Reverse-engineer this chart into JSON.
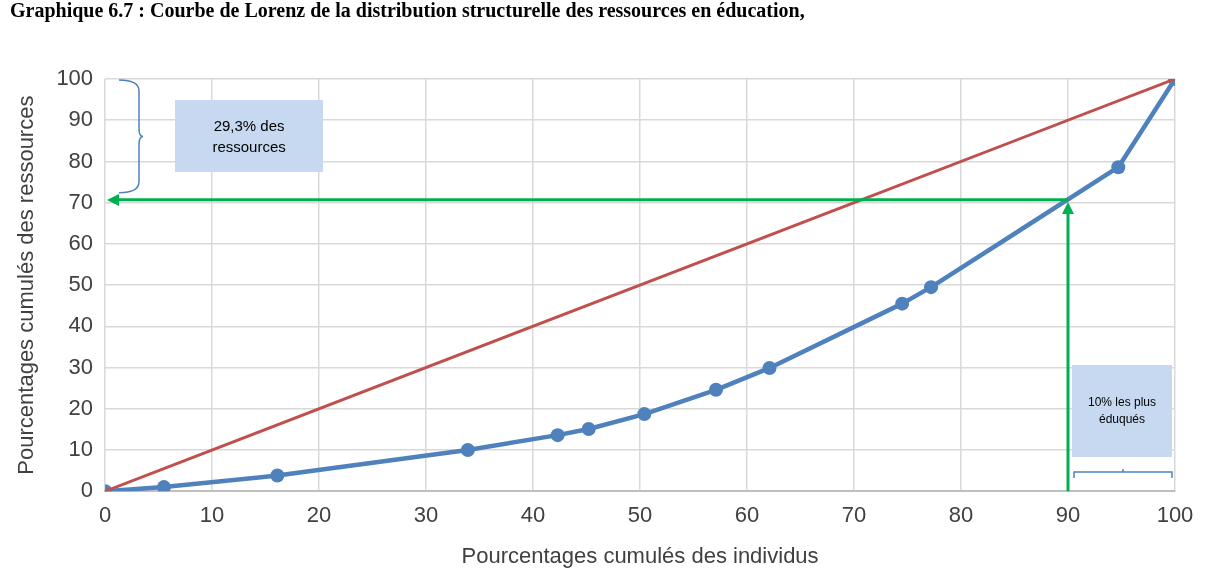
{
  "chart_data": {
    "type": "line",
    "title": "Graphique 6.7 : Courbe de Lorenz de la distribution structurelle des ressources en éducation,",
    "xlabel": "Pourcentages cumulés des individus",
    "ylabel": "Pourcentages cumulés des ressources",
    "series": [
      {
        "color": "#4f81bd",
        "x": [
          0,
          5.5,
          16.1,
          33.9,
          42.3,
          45.2,
          50.4,
          57.1,
          62.1,
          74.5,
          77.2,
          94.7,
          100
        ],
        "values": [
          0,
          1.0,
          3.8,
          10.0,
          13.6,
          15.1,
          18.7,
          24.6,
          29.9,
          45.5,
          49.5,
          78.6,
          100
        ]
      },
      {
        "color": "#c0504d",
        "marker": "none",
        "x": [
          0,
          100
        ],
        "values": [
          0,
          100
        ]
      }
    ],
    "xlim": [
      0,
      100
    ],
    "xticks": [
      0,
      10,
      20,
      30,
      40,
      50,
      60,
      70,
      80,
      90,
      100
    ],
    "ylim": [
      0,
      100
    ],
    "yticks": [
      0,
      10,
      20,
      30,
      40,
      50,
      60,
      70,
      80,
      90,
      100
    ],
    "grid": true,
    "legend": false,
    "marker": "circle",
    "line_style": "solid",
    "ref_lines": [
      {
        "axis": "y",
        "value": 70.7,
        "color": "#00b050"
      },
      {
        "axis": "x",
        "value": 90,
        "color": "#00b050"
      }
    ],
    "annotations": [
      "29,3% des ressources",
      "10% les plus éduqués"
    ]
  }
}
